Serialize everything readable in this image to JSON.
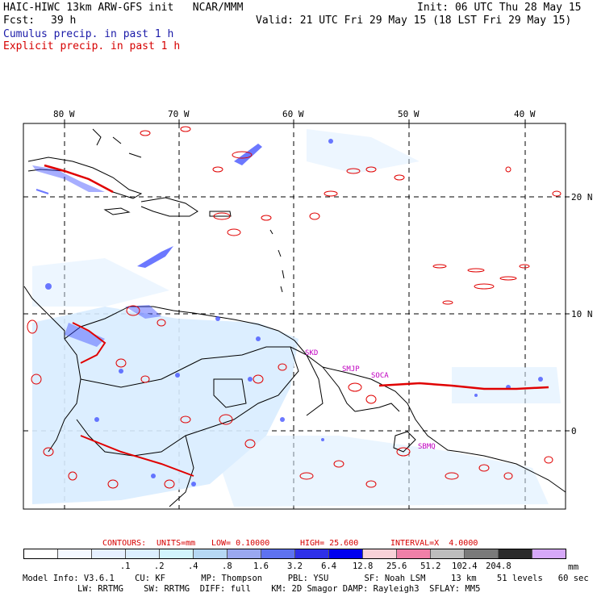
{
  "header": {
    "model_line": "HAIC-HIWC 13km ARW-GFS init   NCAR/MMM",
    "init_line": "Init: 06 UTC Thu 28 May 15",
    "fcst_label": "Fcst:",
    "fcst_value": "39 h",
    "valid_line": "Valid: 21 UTC Fri 29 May 15 (18 LST Fri 29 May 15)",
    "cumulus_label": "Cumulus precip. in past 1 h",
    "explicit_label": "Explicit precip. in past 1 h"
  },
  "map": {
    "lon_labels": [
      "80 W",
      "70 W",
      "60 W",
      "50 W",
      "40 W"
    ],
    "lat_labels": [
      "20 N",
      "10 N",
      "0"
    ],
    "station_labels": [
      "SKD",
      "SMJP",
      "SOCA",
      "SBMQ"
    ],
    "colors": {
      "coast": "#000000",
      "grid": "#000000",
      "cumulus": "#3b4bff",
      "explicit": "#e00000",
      "station": "#c000c0"
    }
  },
  "contours_line": {
    "label": "CONTOURS:",
    "units": "UNITS=mm",
    "low": "LOW= 0.10000",
    "high": "HIGH= 25.600",
    "interval": "INTERVAL=X  4.0000"
  },
  "colorbar": {
    "colors": [
      "#ffffff",
      "#f4f8ff",
      "#e6f0ff",
      "#dcefff",
      "#d2f4fc",
      "#b6d8f4",
      "#9aa8f0",
      "#5e72f0",
      "#2e30e8",
      "#0000f0",
      "#f8d2d8",
      "#f080a8",
      "#bdbdbd",
      "#7a7a7a",
      "#2a2a2a",
      "#d6a8f8"
    ],
    "labels": [
      ".1",
      ".2",
      ".4",
      ".8",
      "1.6",
      "3.2",
      "6.4",
      "12.8",
      "25.6",
      "51.2",
      "102.4",
      "204.8"
    ],
    "unit": "mm"
  },
  "model_info": {
    "line1": "Model Info: V3.6.1    CU: KF       MP: Thompson     PBL: YSU       SF: Noah LSM     13 km    51 levels   60 sec",
    "line2": "LW: RRTMG    SW: RRTMG  DIFF: full    KM: 2D Smagor DAMP: Rayleigh3  SFLAY: MM5"
  }
}
